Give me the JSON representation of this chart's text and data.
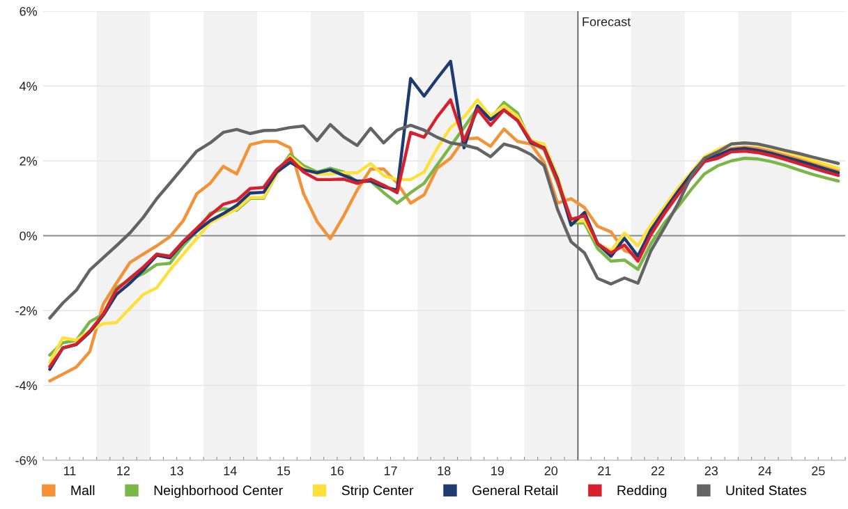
{
  "chart_data": {
    "type": "line",
    "x": [
      "2011-02-15",
      "2011-05-15",
      "2011-08-15",
      "2011-11-15",
      "2012-02-15",
      "2012-05-15",
      "2012-08-15",
      "2012-11-15",
      "2013-02-15",
      "2013-05-15",
      "2013-08-15",
      "2013-11-15",
      "2014-02-15",
      "2014-05-15",
      "2014-08-15",
      "2014-11-15",
      "2015-02-15",
      "2015-05-15",
      "2015-08-15",
      "2015-11-15",
      "2016-02-15",
      "2016-05-15",
      "2016-08-15",
      "2016-11-15",
      "2017-02-15",
      "2017-05-15",
      "2017-08-15",
      "2017-11-15",
      "2018-02-15",
      "2018-05-15",
      "2018-08-15",
      "2018-11-15",
      "2019-02-15",
      "2019-05-15",
      "2019-08-15",
      "2019-11-15",
      "2020-02-15",
      "2020-05-15",
      "2020-08-15",
      "2020-11-15",
      "2021-02-15",
      "2021-05-15",
      "2021-08-15",
      "2021-11-15",
      "2022-02-15",
      "2022-05-15",
      "2022-08-15",
      "2022-11-15",
      "2023-02-15",
      "2023-05-15",
      "2023-08-15",
      "2023-11-15",
      "2024-02-15",
      "2024-05-15",
      "2024-08-15",
      "2024-11-15",
      "2025-02-15",
      "2025-05-15",
      "2025-08-15",
      "2025-11-15"
    ],
    "series": [
      {
        "name": "Mall",
        "color": "#f39237",
        "values": [
          -3.88,
          -3.7,
          -3.51,
          -3.1,
          -1.83,
          -1.27,
          -0.72,
          -0.49,
          -0.27,
          -0.03,
          0.4,
          1.12,
          1.4,
          1.85,
          1.65,
          2.43,
          2.52,
          2.52,
          2.35,
          1.12,
          0.38,
          -0.08,
          0.53,
          1.22,
          1.78,
          1.78,
          1.41,
          0.87,
          1.09,
          1.8,
          2.07,
          2.58,
          2.61,
          2.39,
          2.85,
          2.52,
          2.45,
          1.96,
          0.87,
          0.99,
          0.75,
          0.25,
          0.1,
          -0.4,
          -0.53,
          0.1,
          0.6,
          1.1,
          1.6,
          2.0,
          2.2,
          2.33,
          2.37,
          2.33,
          2.25,
          2.15,
          2.05,
          1.95,
          1.85,
          1.74
        ]
      },
      {
        "name": "Neighborhood Center",
        "color": "#7ab648",
        "values": [
          -3.19,
          -2.86,
          -2.8,
          -2.3,
          -2.1,
          -1.39,
          -1.18,
          -1.01,
          -0.77,
          -0.74,
          -0.27,
          0.12,
          0.6,
          0.72,
          0.68,
          1.0,
          1.0,
          1.65,
          2.17,
          1.87,
          1.7,
          1.8,
          1.7,
          1.43,
          1.46,
          1.15,
          0.87,
          1.15,
          1.4,
          1.89,
          2.39,
          2.89,
          3.41,
          3.13,
          3.56,
          3.28,
          2.48,
          2.3,
          1.4,
          0.34,
          0.34,
          -0.34,
          -0.68,
          -0.65,
          -0.9,
          -0.21,
          0.34,
          0.77,
          1.24,
          1.65,
          1.87,
          2.0,
          2.07,
          2.05,
          1.98,
          1.88,
          1.76,
          1.65,
          1.55,
          1.46
        ]
      },
      {
        "name": "Strip Center",
        "color": "#fde13a",
        "values": [
          -3.38,
          -2.73,
          -2.79,
          -2.54,
          -2.35,
          -2.32,
          -1.94,
          -1.57,
          -1.39,
          -0.92,
          -0.49,
          -0.07,
          0.35,
          0.53,
          0.71,
          1.02,
          1.02,
          1.65,
          2.11,
          1.8,
          1.65,
          1.65,
          1.68,
          1.68,
          1.93,
          1.6,
          1.5,
          1.5,
          1.7,
          2.33,
          2.89,
          3.17,
          3.63,
          3.19,
          3.47,
          3.19,
          2.54,
          2.45,
          1.58,
          0.38,
          0.4,
          -0.21,
          -0.4,
          0.07,
          -0.27,
          0.29,
          0.77,
          1.27,
          1.7,
          2.11,
          2.3,
          2.45,
          2.48,
          2.43,
          2.35,
          2.25,
          2.14,
          2.02,
          1.91,
          1.8
        ]
      },
      {
        "name": "General Retail",
        "color": "#1f3a6e",
        "values": [
          -3.57,
          -3.0,
          -2.91,
          -2.58,
          -2.13,
          -1.57,
          -1.27,
          -0.92,
          -0.52,
          -0.59,
          -0.18,
          0.12,
          0.4,
          0.59,
          0.81,
          1.14,
          1.16,
          1.7,
          1.96,
          1.76,
          1.68,
          1.76,
          1.61,
          1.46,
          1.46,
          1.3,
          1.22,
          4.2,
          3.73,
          4.2,
          4.66,
          2.35,
          3.47,
          3.1,
          3.36,
          3.08,
          2.48,
          2.35,
          1.51,
          0.28,
          0.62,
          -0.21,
          -0.55,
          -0.07,
          -0.55,
          0.16,
          0.68,
          1.18,
          1.65,
          2.05,
          2.15,
          2.3,
          2.33,
          2.28,
          2.2,
          2.1,
          2.0,
          1.9,
          1.79,
          1.68
        ]
      },
      {
        "name": "Redding",
        "color": "#d7202e",
        "values": [
          -3.5,
          -3.0,
          -2.9,
          -2.55,
          -2.1,
          -1.45,
          -1.14,
          -0.84,
          -0.49,
          -0.55,
          -0.15,
          0.2,
          0.55,
          0.84,
          0.94,
          1.26,
          1.29,
          1.77,
          2.07,
          1.7,
          1.5,
          1.5,
          1.51,
          1.4,
          1.51,
          1.35,
          1.15,
          2.76,
          2.63,
          3.17,
          3.63,
          2.54,
          3.38,
          2.95,
          3.36,
          3.08,
          2.52,
          2.33,
          1.46,
          0.44,
          0.53,
          -0.21,
          -0.46,
          -0.25,
          -0.68,
          0.03,
          0.59,
          1.09,
          1.55,
          1.98,
          2.07,
          2.24,
          2.26,
          2.22,
          2.14,
          2.04,
          1.93,
          1.82,
          1.71,
          1.61
        ]
      },
      {
        "name": "United States",
        "color": "#636466",
        "values": [
          -2.2,
          -1.8,
          -1.46,
          -0.92,
          -0.59,
          -0.27,
          0.07,
          0.49,
          0.99,
          1.4,
          1.83,
          2.26,
          2.48,
          2.76,
          2.84,
          2.73,
          2.81,
          2.82,
          2.89,
          2.93,
          2.54,
          2.97,
          2.64,
          2.41,
          2.87,
          2.48,
          2.82,
          2.95,
          2.82,
          2.63,
          2.48,
          2.42,
          2.33,
          2.11,
          2.45,
          2.35,
          2.17,
          1.87,
          0.7,
          -0.16,
          -0.46,
          -1.14,
          -1.29,
          -1.13,
          -1.27,
          -0.4,
          0.21,
          0.85,
          1.6,
          2.07,
          2.24,
          2.45,
          2.48,
          2.45,
          2.37,
          2.28,
          2.2,
          2.11,
          2.02,
          1.93
        ]
      }
    ],
    "xlim": [
      "2011-01-01",
      "2026-01-01"
    ],
    "xticks": [
      {
        "value": "2011-01-01",
        "label": null
      },
      {
        "value": "2011-04-01",
        "label": null
      },
      {
        "value": "2011-07-01",
        "label": "11"
      },
      {
        "value": "2011-10-01",
        "label": null
      },
      {
        "value": "2012-01-01",
        "label": null
      },
      {
        "value": "2012-04-01",
        "label": null
      },
      {
        "value": "2012-07-01",
        "label": "12"
      },
      {
        "value": "2012-10-01",
        "label": null
      },
      {
        "value": "2013-01-01",
        "label": null
      },
      {
        "value": "2013-04-01",
        "label": null
      },
      {
        "value": "2013-07-01",
        "label": "13"
      },
      {
        "value": "2013-10-01",
        "label": null
      },
      {
        "value": "2014-01-01",
        "label": null
      },
      {
        "value": "2014-04-01",
        "label": null
      },
      {
        "value": "2014-07-01",
        "label": "14"
      },
      {
        "value": "2014-10-01",
        "label": null
      },
      {
        "value": "2015-01-01",
        "label": null
      },
      {
        "value": "2015-04-01",
        "label": null
      },
      {
        "value": "2015-07-01",
        "label": "15"
      },
      {
        "value": "2015-10-01",
        "label": null
      },
      {
        "value": "2016-01-01",
        "label": null
      },
      {
        "value": "2016-04-01",
        "label": null
      },
      {
        "value": "2016-07-01",
        "label": "16"
      },
      {
        "value": "2016-10-01",
        "label": null
      },
      {
        "value": "2017-01-01",
        "label": null
      },
      {
        "value": "2017-04-01",
        "label": null
      },
      {
        "value": "2017-07-01",
        "label": "17"
      },
      {
        "value": "2017-10-01",
        "label": null
      },
      {
        "value": "2018-01-01",
        "label": null
      },
      {
        "value": "2018-04-01",
        "label": null
      },
      {
        "value": "2018-07-01",
        "label": "18"
      },
      {
        "value": "2018-10-01",
        "label": null
      },
      {
        "value": "2019-01-01",
        "label": null
      },
      {
        "value": "2019-04-01",
        "label": null
      },
      {
        "value": "2019-07-01",
        "label": "19"
      },
      {
        "value": "2019-10-01",
        "label": null
      },
      {
        "value": "2020-01-01",
        "label": null
      },
      {
        "value": "2020-04-01",
        "label": null
      },
      {
        "value": "2020-07-01",
        "label": "20"
      },
      {
        "value": "2020-10-01",
        "label": null
      },
      {
        "value": "2021-01-01",
        "label": null
      },
      {
        "value": "2021-04-01",
        "label": null
      },
      {
        "value": "2021-07-01",
        "label": "21"
      },
      {
        "value": "2021-10-01",
        "label": null
      },
      {
        "value": "2022-01-01",
        "label": null
      },
      {
        "value": "2022-04-01",
        "label": null
      },
      {
        "value": "2022-07-01",
        "label": "22"
      },
      {
        "value": "2022-10-01",
        "label": null
      },
      {
        "value": "2023-01-01",
        "label": null
      },
      {
        "value": "2023-04-01",
        "label": null
      },
      {
        "value": "2023-07-01",
        "label": "23"
      },
      {
        "value": "2023-10-01",
        "label": null
      },
      {
        "value": "2024-01-01",
        "label": null
      },
      {
        "value": "2024-04-01",
        "label": null
      },
      {
        "value": "2024-07-01",
        "label": "24"
      },
      {
        "value": "2024-10-01",
        "label": null
      },
      {
        "value": "2025-01-01",
        "label": null
      },
      {
        "value": "2025-04-01",
        "label": null
      },
      {
        "value": "2025-07-01",
        "label": "25"
      },
      {
        "value": "2025-10-01",
        "label": null
      },
      {
        "value": "2026-01-01",
        "label": null
      }
    ],
    "ylim": [
      -6,
      6
    ],
    "yticks": [
      {
        "value": -6,
        "label": "-6%"
      },
      {
        "value": -4,
        "label": "-4%"
      },
      {
        "value": -2,
        "label": "-2%"
      },
      {
        "value": 0,
        "label": "0%"
      },
      {
        "value": 2,
        "label": "2%"
      },
      {
        "value": 4,
        "label": "4%"
      },
      {
        "value": 6,
        "label": "6%"
      }
    ],
    "grid": "y",
    "ref_lines": [
      {
        "axis": "y",
        "value": 0,
        "color": "#8c8c8c"
      },
      {
        "axis": "x",
        "value": "2021-01-01",
        "label": "Forecast",
        "color": "#555555"
      }
    ],
    "bands": [
      {
        "axis": "x",
        "from": "2012-01-01",
        "to": "2013-01-01",
        "color": "#f2f2f2"
      },
      {
        "axis": "x",
        "from": "2014-01-01",
        "to": "2015-01-01",
        "color": "#f2f2f2"
      },
      {
        "axis": "x",
        "from": "2016-01-01",
        "to": "2017-01-01",
        "color": "#f2f2f2"
      },
      {
        "axis": "x",
        "from": "2018-01-01",
        "to": "2019-01-01",
        "color": "#f2f2f2"
      },
      {
        "axis": "x",
        "from": "2020-01-01",
        "to": "2021-01-01",
        "color": "#f2f2f2"
      },
      {
        "axis": "x",
        "from": "2022-01-01",
        "to": "2023-01-01",
        "color": "#f2f2f2"
      },
      {
        "axis": "x",
        "from": "2024-01-01",
        "to": "2025-01-01",
        "color": "#f2f2f2"
      }
    ],
    "legend": "bottom",
    "marker": "none",
    "line_style": "solid"
  }
}
